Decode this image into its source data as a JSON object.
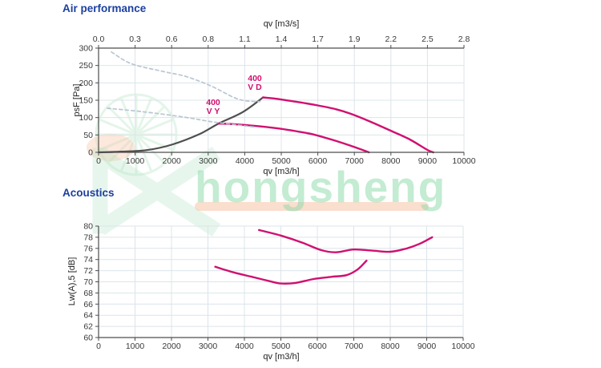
{
  "palette": {
    "title_blue": "#1c3fa0",
    "curve_magenta": "#d01070",
    "curve_gray": "#4f4f4f",
    "curve_dashed_blue": "#b9c6d2",
    "grid": "#dce4ea",
    "axis": "#4d4d4d",
    "watermark_green": "#8edbaa",
    "watermark_salmon": "#f6c3a5"
  },
  "watermark": {
    "text": "hongsheng"
  },
  "chart_data": [
    {
      "id": "air",
      "type": "line",
      "title": "Air performance",
      "xlabel": "qv [m3/h]",
      "ylabel": "psF [Pa]",
      "top_axis_label": "qv [m3/s]",
      "xlim": [
        0,
        10000
      ],
      "ylim": [
        0,
        300
      ],
      "grid": true,
      "legend": "none",
      "xticks": [
        0,
        1000,
        2000,
        3000,
        4000,
        5000,
        6000,
        7000,
        8000,
        9000,
        10000
      ],
      "xtick_labels": [
        "0",
        "1000",
        "2000",
        "3000",
        "4000",
        "5000",
        "6000",
        "7000",
        "8000",
        "9000",
        "10000"
      ],
      "top_tick_labels": [
        "0.0",
        "0.3",
        "0.6",
        "0.8",
        "1.1",
        "1.4",
        "1.7",
        "1.9",
        "2.2",
        "2.5",
        "2.8"
      ],
      "yticks": [
        0,
        50,
        100,
        150,
        200,
        250,
        300
      ],
      "ytick_labels": [
        "0",
        "50",
        "100",
        "150",
        "200",
        "250",
        "300"
      ],
      "series": [
        {
          "name": "system_curve_gray",
          "color": "#4f4f4f",
          "width": 2.2,
          "dash": null,
          "points": [
            [
              0,
              0
            ],
            [
              600,
              2
            ],
            [
              1300,
              6
            ],
            [
              2000,
              22
            ],
            [
              2750,
              52
            ],
            [
              3290,
              83
            ],
            [
              3950,
              116
            ],
            [
              4500,
              158
            ]
          ]
        },
        {
          "name": "400 V D",
          "color": "#d01070",
          "width": 2.4,
          "dash": null,
          "points": [
            [
              4500,
              158
            ],
            [
              4800,
              155
            ],
            [
              5500,
              144
            ],
            [
              6000,
              135
            ],
            [
              6500,
              124
            ],
            [
              6900,
              111
            ],
            [
              7400,
              90
            ],
            [
              8000,
              62
            ],
            [
              8500,
              38
            ],
            [
              9000,
              7
            ],
            [
              9160,
              0
            ]
          ]
        },
        {
          "name": "400 V Y",
          "color": "#d01070",
          "width": 2.4,
          "dash": null,
          "points": [
            [
              3290,
              83
            ],
            [
              3700,
              81
            ],
            [
              4300,
              76
            ],
            [
              4900,
              69
            ],
            [
              5500,
              59
            ],
            [
              5900,
              51
            ],
            [
              6400,
              36
            ],
            [
              6900,
              19
            ],
            [
              7400,
              0
            ]
          ]
        },
        {
          "name": "guide_dashed_upper",
          "color": "#b9c6d2",
          "width": 1.7,
          "dash": "4 3.5",
          "points": [
            [
              350,
              289
            ],
            [
              900,
              255
            ],
            [
              1800,
              232
            ],
            [
              2400,
              218
            ],
            [
              3100,
              190
            ],
            [
              3700,
              158
            ],
            [
              4050,
              148
            ],
            [
              4420,
              146
            ]
          ]
        },
        {
          "name": "guide_dashed_lower",
          "color": "#b9c6d2",
          "width": 1.7,
          "dash": "4 3.5",
          "points": [
            [
              240,
              127
            ],
            [
              1200,
              117
            ],
            [
              2300,
              102
            ],
            [
              3100,
              88
            ],
            [
              3700,
              80
            ],
            [
              4250,
              73
            ]
          ]
        }
      ],
      "annotations": [
        {
          "lines": [
            "400",
            "V D"
          ],
          "color": "#d01070"
        },
        {
          "lines": [
            "400",
            "V Y"
          ],
          "color": "#d01070"
        }
      ]
    },
    {
      "id": "acoustics",
      "type": "line",
      "title": "Acoustics",
      "xlabel": "qv [m3/h]",
      "ylabel": "Lw(A),5 [dB]",
      "xlim": [
        0,
        10000
      ],
      "ylim": [
        60,
        80
      ],
      "grid": true,
      "legend": "none",
      "xticks": [
        0,
        1000,
        2000,
        3000,
        4000,
        5000,
        6000,
        7000,
        8000,
        9000,
        10000
      ],
      "xtick_labels": [
        "0",
        "1000",
        "2000",
        "3000",
        "4000",
        "5000",
        "6000",
        "7000",
        "8000",
        "9000",
        "10000"
      ],
      "yticks": [
        60,
        62,
        64,
        66,
        68,
        70,
        72,
        74,
        76,
        78,
        80
      ],
      "ytick_labels": [
        "60",
        "62",
        "64",
        "66",
        "68",
        "70",
        "72",
        "74",
        "76",
        "78",
        "80"
      ],
      "series": [
        {
          "name": "400 V D",
          "color": "#d01070",
          "width": 2.4,
          "dash": null,
          "points": [
            [
              4400,
              79.3
            ],
            [
              5000,
              78.3
            ],
            [
              5600,
              77.0
            ],
            [
              6100,
              75.7
            ],
            [
              6500,
              75.3
            ],
            [
              7000,
              75.8
            ],
            [
              7500,
              75.6
            ],
            [
              8000,
              75.4
            ],
            [
              8400,
              75.9
            ],
            [
              8800,
              76.8
            ],
            [
              9150,
              78.0
            ]
          ]
        },
        {
          "name": "400 V Y",
          "color": "#d01070",
          "width": 2.4,
          "dash": null,
          "points": [
            [
              3200,
              72.7
            ],
            [
              3700,
              71.7
            ],
            [
              4200,
              70.9
            ],
            [
              4700,
              70.1
            ],
            [
              5000,
              69.7
            ],
            [
              5400,
              69.8
            ],
            [
              5900,
              70.5
            ],
            [
              6400,
              70.9
            ],
            [
              6800,
              71.2
            ],
            [
              7100,
              72.2
            ],
            [
              7350,
              73.8
            ]
          ]
        }
      ]
    }
  ]
}
